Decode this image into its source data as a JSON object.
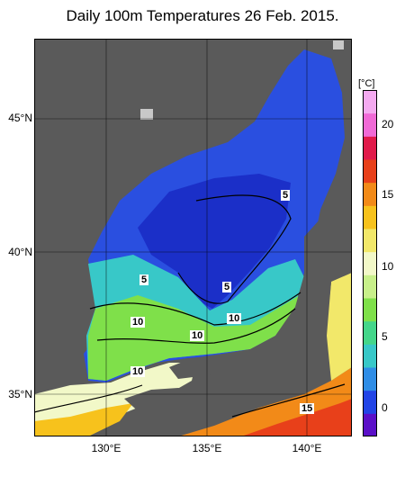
{
  "title": "Daily 100m Temperatures 26 Feb. 2015.",
  "map": {
    "lat_labels": [
      "45°N",
      "40°N",
      "35°N"
    ],
    "lon_labels": [
      "130°E",
      "135°E",
      "140°E"
    ],
    "contour_labels": [
      "5",
      "5",
      "5",
      "10",
      "10",
      "10",
      "10",
      "15"
    ]
  },
  "colorbar": {
    "unit": "[°C]",
    "ticks": [
      "20",
      "15",
      "10",
      "5",
      "0"
    ],
    "range": [
      -2,
      22
    ],
    "colors": [
      "#5b10c8",
      "#2244e6",
      "#2f8de6",
      "#38c8c8",
      "#44d68a",
      "#7fe04a",
      "#c8f08a",
      "#f2f8c8",
      "#f2e86a",
      "#f7c21c",
      "#f28a18",
      "#e8401a",
      "#e01a4a",
      "#f06ad6",
      "#f4aaf0"
    ]
  },
  "colors": {
    "land": "#5a5a5a",
    "ice_or_nodata": "#c8c8c8"
  }
}
